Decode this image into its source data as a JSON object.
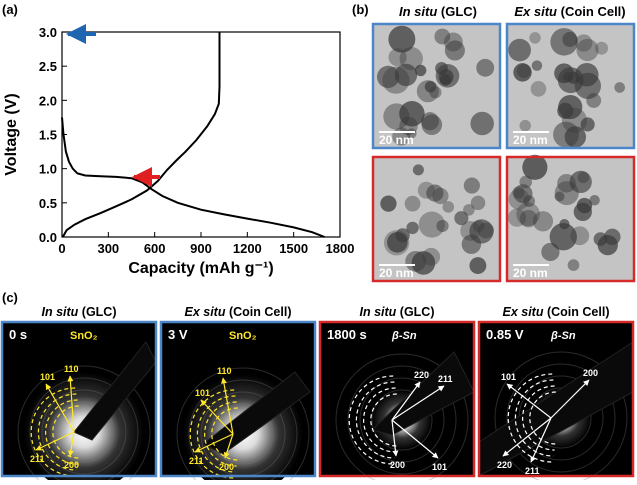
{
  "chart_data": {
    "type": "line",
    "label": "(a)",
    "xlabel": "Capacity (mAh g⁻¹)",
    "ylabel": "Voltage (V)",
    "xlim": [
      0,
      1800
    ],
    "ylim": [
      0,
      3.0
    ],
    "xticks": [
      0,
      300,
      600,
      900,
      1200,
      1500,
      1800
    ],
    "yticks": [
      {
        "value": 0,
        "label": "0.0"
      },
      0.5,
      {
        "value": 1,
        "label": "1.0"
      },
      1.5,
      {
        "value": 2,
        "label": "2.0"
      },
      2.5,
      {
        "value": 3,
        "label": "3.0"
      }
    ],
    "series": [
      {
        "color": "#000000",
        "x": [
          0,
          10,
          25,
          45,
          70,
          100,
          150,
          250,
          350,
          450,
          520,
          580,
          650,
          750,
          900,
          1050,
          1200,
          1350,
          1500,
          1620,
          1700
        ],
        "values": [
          1.75,
          1.5,
          1.25,
          1.1,
          1.0,
          0.93,
          0.9,
          0.89,
          0.88,
          0.86,
          0.8,
          0.7,
          0.6,
          0.5,
          0.4,
          0.33,
          0.27,
          0.21,
          0.14,
          0.07,
          0.0
        ]
      },
      {
        "color": "#000000",
        "x": [
          5,
          30,
          80,
          150,
          250,
          350,
          450,
          550,
          620,
          680,
          740,
          800,
          870,
          940,
          990,
          1015,
          1020,
          1020
        ],
        "values": [
          0.0,
          0.1,
          0.18,
          0.26,
          0.35,
          0.45,
          0.55,
          0.68,
          0.82,
          0.98,
          1.12,
          1.25,
          1.42,
          1.62,
          1.8,
          1.95,
          2.2,
          3.0
        ]
      }
    ]
  },
  "panel_b": {
    "label": "(b)",
    "columns": [
      {
        "italic": "In situ",
        "rest": "(GLC)"
      },
      {
        "italic": "Ex situ",
        "rest": "(Coin Cell)"
      }
    ],
    "images": [
      {
        "scale_bar": "20 nm"
      },
      {
        "scale_bar": "20 nm"
      },
      {
        "scale_bar": "20 nm"
      },
      {
        "scale_bar": "20 nm"
      }
    ]
  },
  "panel_c": {
    "label": "(c)",
    "images": [
      {
        "title": {
          "italic": "In situ",
          "rest": "(GLC)"
        },
        "condition": "0 s",
        "phase": "SnO₂",
        "indices": [
          "101",
          "110",
          "211",
          "200"
        ]
      },
      {
        "title": {
          "italic": "Ex situ",
          "rest": "(Coin Cell)"
        },
        "condition": "3 V",
        "phase": "SnO₂",
        "indices": [
          "110",
          "101",
          "211",
          "200"
        ]
      },
      {
        "title": {
          "italic": "In situ",
          "rest": "(GLC)"
        },
        "condition": "1800 s",
        "phase": "β-Sn",
        "indices": [
          "220",
          "211",
          "200",
          "101"
        ]
      },
      {
        "title": {
          "italic": "Ex situ",
          "rest": "(Coin Cell)"
        },
        "condition": "0.85 V",
        "phase": "β-Sn",
        "indices": [
          "101",
          "200",
          "220",
          "211"
        ]
      }
    ]
  }
}
